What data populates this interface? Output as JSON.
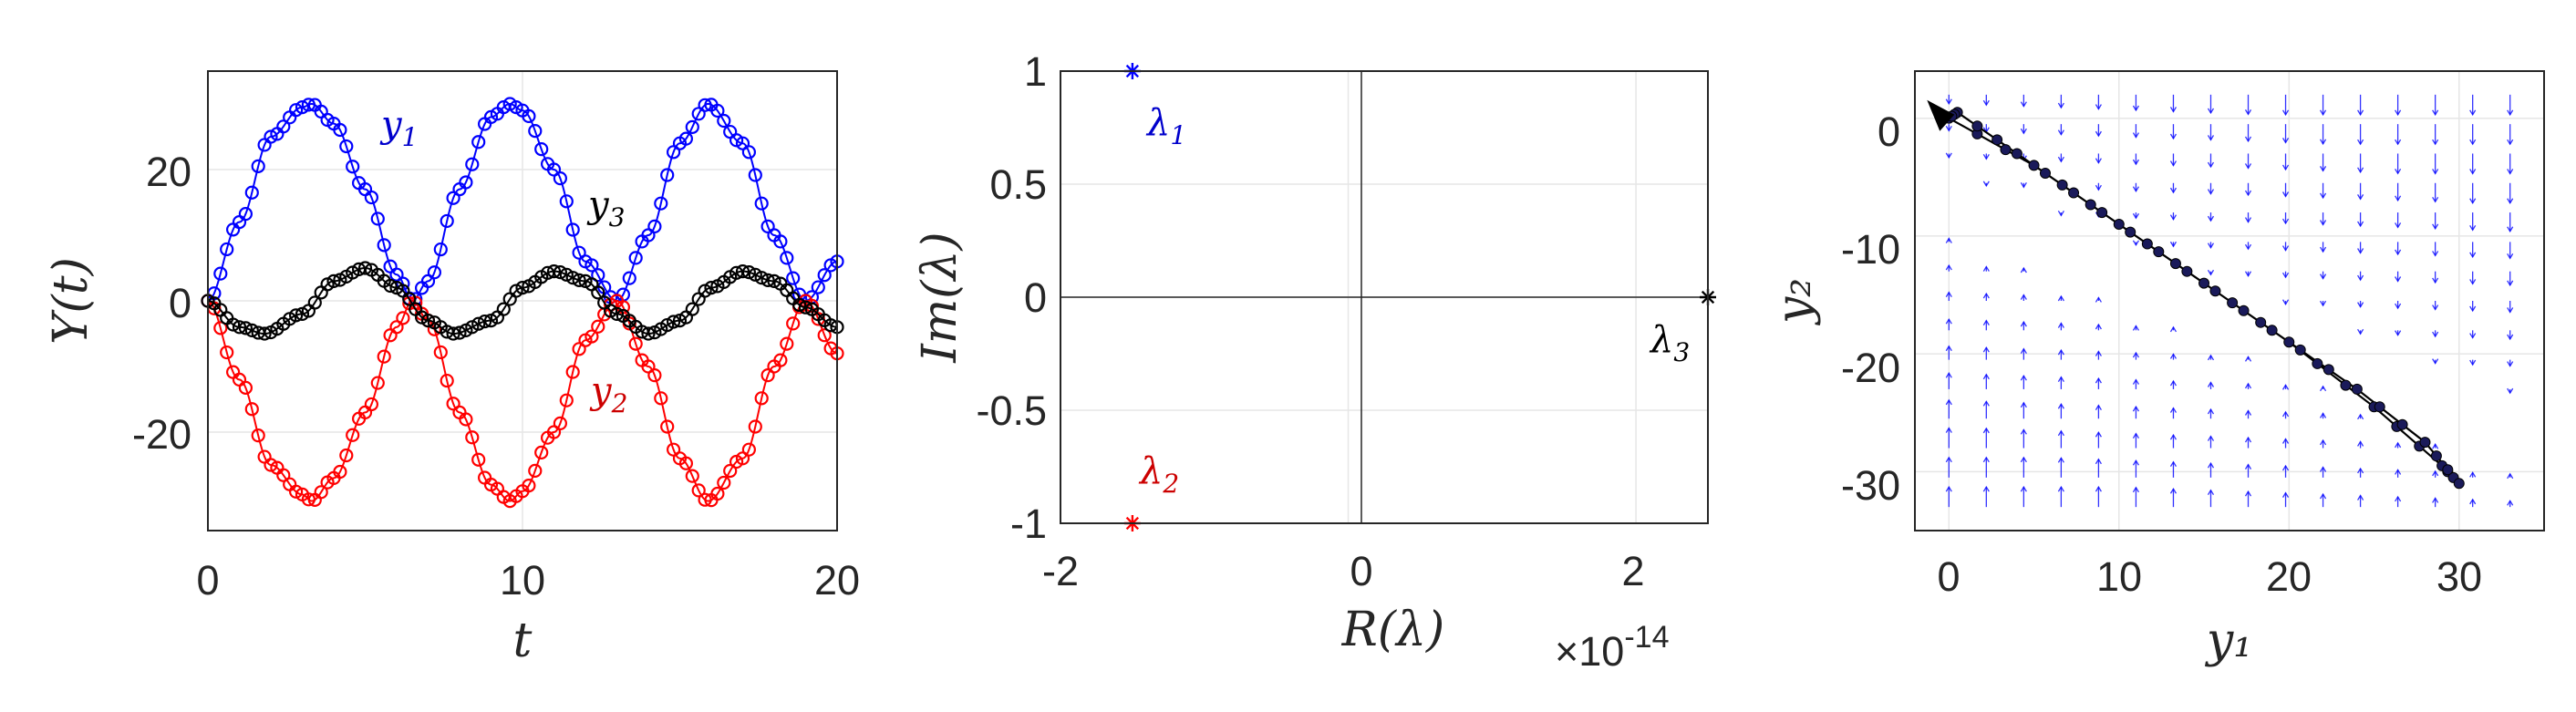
{
  "chart_data": [
    {
      "type": "line",
      "xlabel": "t",
      "ylabel": "Y(t)",
      "xlim": [
        0,
        20
      ],
      "ylim": [
        -35,
        35
      ],
      "xticks": [
        "0",
        "10",
        "20"
      ],
      "yticks": [
        "-20",
        "0",
        "20"
      ],
      "grid": true,
      "annotations": [
        {
          "text": "y",
          "sub": "1",
          "color": "#0000cc"
        },
        {
          "text": "y",
          "sub": "3",
          "color": "#000000"
        },
        {
          "text": "y",
          "sub": "2",
          "color": "#cc0000"
        }
      ],
      "series": [
        {
          "color": "#0000ff",
          "marker": "circle",
          "t": [
            0,
            1,
            2,
            3,
            3.3,
            4,
            5,
            6,
            6.5,
            7,
            8,
            9,
            9.6,
            10,
            11,
            12,
            13,
            14,
            15,
            15.9,
            17,
            18,
            19,
            20
          ],
          "values": [
            0,
            12,
            25,
            29.5,
            30,
            27,
            17,
            4,
            0,
            3,
            17,
            28,
            30,
            29,
            20,
            6,
            0,
            10,
            24,
            30,
            24,
            10,
            0,
            6
          ]
        },
        {
          "color": "#ff0000",
          "marker": "circle",
          "t": [
            0,
            1,
            2,
            3,
            3.3,
            4,
            5,
            6,
            6.5,
            7,
            8,
            9,
            9.6,
            10,
            11,
            12,
            13,
            14,
            15,
            15.9,
            17,
            18,
            19,
            20
          ],
          "values": [
            0,
            -12,
            -25,
            -29.5,
            -30.5,
            -27,
            -17,
            -4,
            0,
            -3,
            -17,
            -28,
            -30.5,
            -29,
            -20,
            -6,
            0,
            -10,
            -24,
            -30.5,
            -24,
            -10,
            0,
            -8
          ]
        },
        {
          "color": "#000000",
          "marker": "circle",
          "t": [
            0,
            1,
            1.8,
            3,
            4,
            5,
            6,
            7,
            7.8,
            9,
            10,
            11,
            12,
            13,
            14,
            15,
            16,
            17,
            18,
            19,
            20
          ],
          "values": [
            0,
            -4,
            -5,
            -2,
            3,
            5,
            2,
            -3,
            -5,
            -3,
            2,
            4.5,
            3,
            -2,
            -5,
            -3,
            2,
            4.5,
            3,
            -1,
            -4
          ]
        }
      ]
    },
    {
      "type": "scatter",
      "xlabel": "R(λ)",
      "ylabel": "Im(λ)",
      "xlim": [
        -2e-14,
        2.5e-14
      ],
      "ylim": [
        -1,
        1
      ],
      "xticks": [
        "-2",
        "0",
        "2"
      ],
      "yticks": [
        "1",
        "0.5",
        "0",
        "-0.5",
        "-1"
      ],
      "x_multiplier_base": "×10",
      "x_multiplier_exp": "-14",
      "grid": true,
      "points": [
        {
          "label": "λ",
          "sub": "1",
          "x": -1.5e-14,
          "y": 1,
          "color": "#0000ff"
        },
        {
          "label": "λ",
          "sub": "2",
          "x": -1.5e-14,
          "y": -1,
          "color": "#ff0000"
        },
        {
          "label": "λ",
          "sub": "3",
          "x": 2.5e-14,
          "y": 0,
          "color": "#000000"
        }
      ]
    },
    {
      "type": "line",
      "xlabel": "y₁",
      "ylabel": "y₂",
      "xlim": [
        -2,
        35
      ],
      "ylim": [
        -35,
        4
      ],
      "xticks": [
        "0",
        "10",
        "20",
        "30"
      ],
      "yticks": [
        "0",
        "-10",
        "-20",
        "-30"
      ],
      "grid": true,
      "quiver_color": "#0000ff",
      "trajectory_color": "#000000",
      "marker_color": "#1a1a5a",
      "trajectory": {
        "x": [
          0,
          5,
          10,
          15,
          20,
          25,
          29,
          30,
          28,
          24,
          19,
          14,
          9,
          4,
          0.5,
          0
        ],
        "y": [
          0,
          -4,
          -9,
          -14,
          -19,
          -24.5,
          -29.5,
          -31,
          -27.5,
          -23,
          -18,
          -13,
          -8,
          -3,
          0.5,
          0
        ]
      }
    }
  ]
}
